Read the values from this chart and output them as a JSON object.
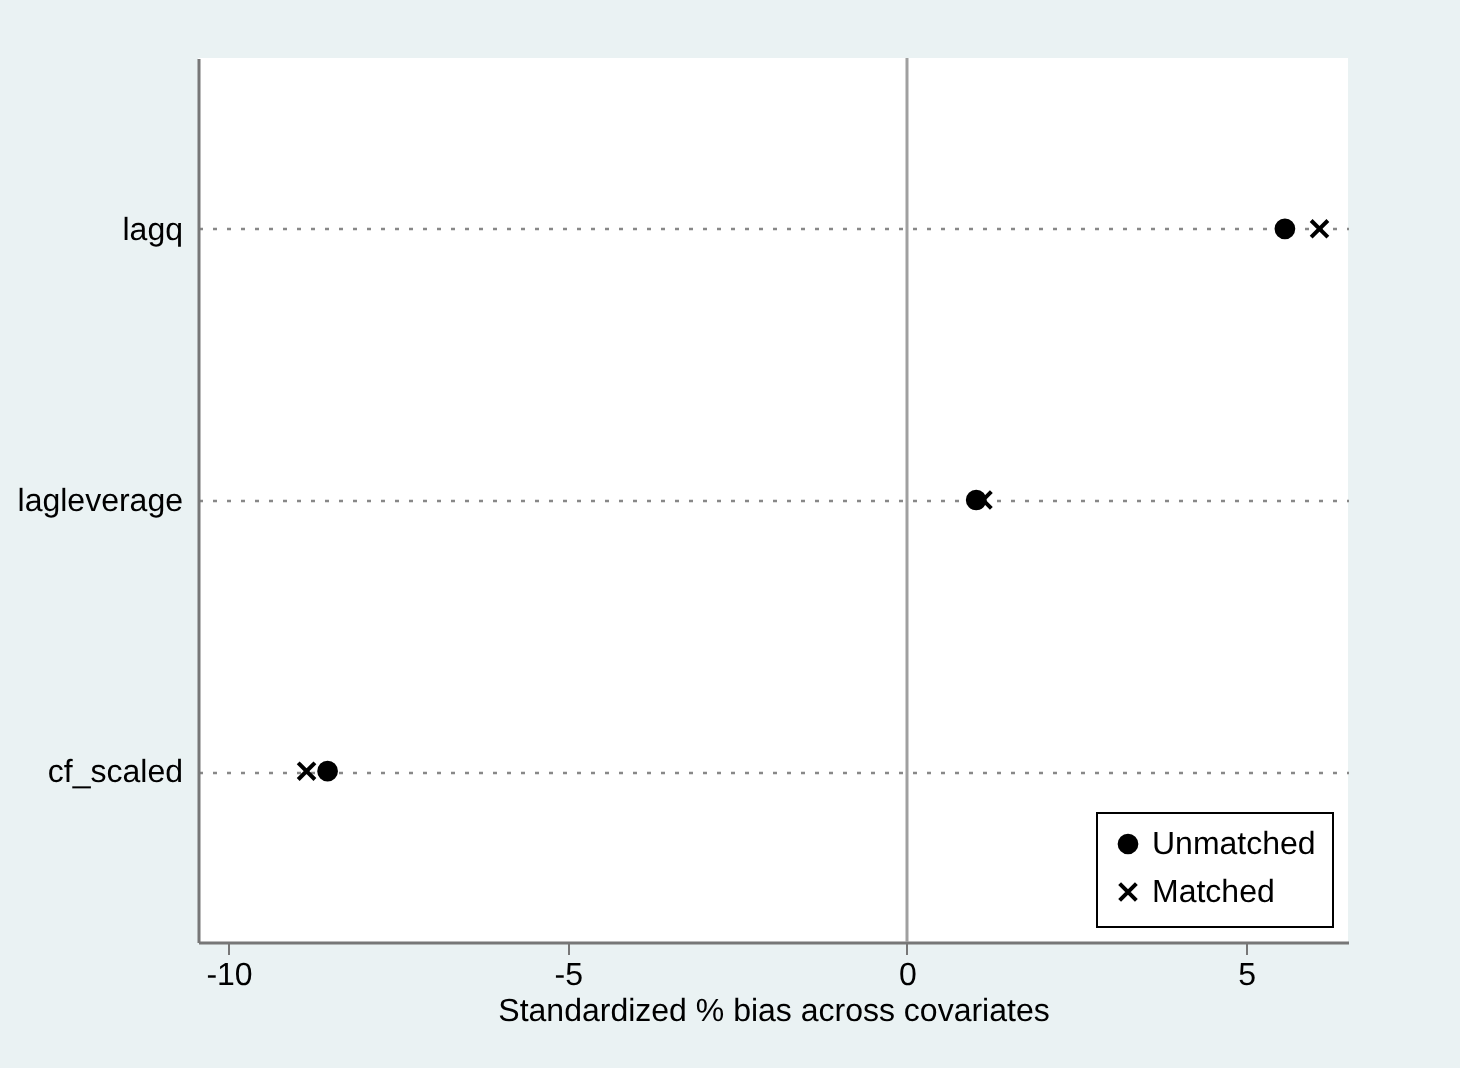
{
  "chart_data": {
    "type": "scatter",
    "orientation": "horizontal",
    "xlabel": "Standardized % bias across covariates",
    "categories": [
      "lagq",
      "lagleverage",
      "cf_scaled"
    ],
    "series": [
      {
        "name": "Unmatched",
        "color": "#000000",
        "marker": "circle",
        "values": [
          5.57,
          1.02,
          -8.54
        ]
      },
      {
        "name": "Matched",
        "color": "#000000",
        "marker": "cross",
        "values": [
          6.08,
          1.12,
          -8.85
        ]
      }
    ],
    "xlim": [
      -10.45,
      6.5
    ],
    "xticks": [
      -10,
      -5,
      0,
      5
    ],
    "grid": "y",
    "legend": "bottom right",
    "ref_lines": [
      {
        "axis": "x",
        "value": 0,
        "color": "#a0a0a0"
      }
    ]
  }
}
